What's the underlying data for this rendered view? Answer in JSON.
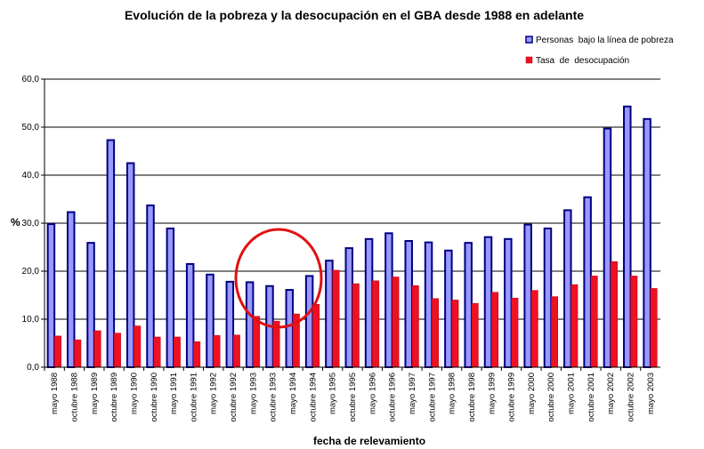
{
  "chart_data": {
    "type": "bar",
    "title": "Evolución de la pobreza y la desocupación en el GBA desde 1988 en adelante",
    "x_label": "fecha de relevamiento",
    "y_label": "%",
    "categories": [
      "mayo 1988",
      "octubre 1988",
      "mayo 1989",
      "octubre 1989",
      "mayo 1990",
      "octubre 1990",
      "mayo 1991",
      "octubre 1991",
      "mayo 1992",
      "octubre 1992",
      "mayo 1993",
      "octubre 1993",
      "mayo 1994",
      "octubre 1994",
      "mayo 1995",
      "octubre 1995",
      "mayo 1996",
      "octubre 1996",
      "mayo 1997",
      "octubre 1997",
      "mayo 1998",
      "octubre 1998",
      "mayo 1999",
      "octubre 1999",
      "mayo 2000",
      "octubre 2000",
      "mayo 2001",
      "octubre 2001",
      "mayo 2002",
      "octubre 2002",
      "mayo 2003"
    ],
    "series": [
      {
        "name": "Personas  bajo la línea de pobreza",
        "color": "#9999ff",
        "values": [
          29.8,
          32.3,
          25.9,
          47.3,
          42.5,
          33.7,
          28.9,
          21.5,
          19.3,
          17.8,
          17.7,
          16.9,
          16.1,
          19.0,
          22.2,
          24.8,
          26.7,
          27.9,
          26.3,
          26.0,
          24.3,
          25.9,
          27.1,
          26.7,
          29.7,
          28.9,
          32.7,
          35.4,
          49.7,
          54.3,
          51.7
        ]
      },
      {
        "name": "Tasa  de  desocupación",
        "color": "#ee1122",
        "values": [
          6.5,
          5.7,
          7.6,
          7.1,
          8.6,
          6.3,
          6.3,
          5.3,
          6.6,
          6.7,
          10.6,
          9.6,
          11.1,
          13.1,
          20.2,
          17.4,
          18.0,
          18.8,
          17.0,
          14.3,
          14.0,
          13.3,
          15.6,
          14.4,
          16.0,
          14.7,
          17.2,
          19.0,
          22.0,
          19.0,
          16.4
        ]
      }
    ],
    "ylim": [
      0,
      60
    ],
    "yticks": [
      {
        "value": 0,
        "label": "0,0"
      },
      {
        "value": 10,
        "label": "10,0"
      },
      {
        "value": 20,
        "label": "20,0"
      },
      {
        "value": 30,
        "label": "30,0"
      },
      {
        "value": 40,
        "label": "40,0"
      },
      {
        "value": 50,
        "label": "50,0"
      },
      {
        "value": 60,
        "label": "60,0"
      }
    ],
    "grid": true
  }
}
